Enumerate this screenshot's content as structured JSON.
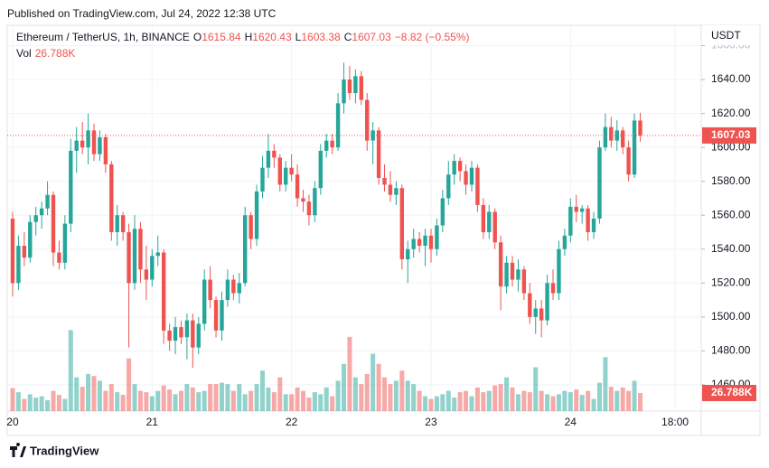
{
  "chart_data": {
    "type": "candlestick",
    "title": "Published on TradingView.com, Jul 24, 2022 12:38 UTC",
    "legend": {
      "symbol": "Ethereum / TetherUS, 1h, BINANCE",
      "ohlc_keys": [
        "O",
        "H",
        "L",
        "C"
      ],
      "change": "−8.82 (−0.55%)",
      "volume_name": "Vol"
    },
    "y_axis_label": "USDT",
    "brand": "TradingView",
    "up_color": "#26a69a",
    "down_color": "#ef5350",
    "grid": true,
    "x": [
      0,
      1,
      2,
      3,
      4,
      5,
      6,
      7,
      8,
      9,
      10,
      11,
      12,
      13,
      14,
      15,
      16,
      17,
      18,
      19,
      20,
      21,
      22,
      23,
      24,
      25,
      26,
      27,
      28,
      29,
      30,
      31,
      32,
      33,
      34,
      35,
      36,
      37,
      38,
      39,
      40,
      41,
      42,
      43,
      44,
      45,
      46,
      47,
      48,
      49,
      50,
      51,
      52,
      53,
      54,
      55,
      56,
      57,
      58,
      59,
      60,
      61,
      62,
      63,
      64,
      65,
      66,
      67,
      68,
      69,
      70,
      71,
      72,
      73,
      74,
      75,
      76,
      77,
      78,
      79,
      80,
      81,
      82,
      83,
      84,
      85,
      86,
      87,
      88,
      89,
      90,
      91,
      92,
      93,
      94,
      95,
      96,
      97,
      98,
      99,
      100,
      101,
      102,
      103,
      104,
      105,
      106,
      107,
      108
    ],
    "xlim": [
      -0.93,
      118.5
    ],
    "xticks": [
      {
        "value": 0,
        "label": "20"
      },
      {
        "value": 24,
        "label": "21"
      },
      {
        "value": 48,
        "label": "22"
      },
      {
        "value": 72,
        "label": "23"
      },
      {
        "value": 96,
        "label": "24"
      },
      {
        "value": 114,
        "label": "18:00"
      }
    ],
    "ylim": [
      1444.5,
      1672
    ],
    "yticks": [
      {
        "value": 1460,
        "label": "1460.00"
      },
      {
        "value": 1480,
        "label": "1480.00"
      },
      {
        "value": 1500,
        "label": "1500.00"
      },
      {
        "value": 1520,
        "label": "1520.00"
      },
      {
        "value": 1540,
        "label": "1540.00"
      },
      {
        "value": 1560,
        "label": "1560.00"
      },
      {
        "value": 1580,
        "label": "1580.00"
      },
      {
        "value": 1600,
        "label": "1600.00"
      },
      {
        "value": 1620,
        "label": "1620.00"
      },
      {
        "value": 1640,
        "label": "1640.00"
      },
      {
        "value": 1660,
        "label": "1660.00"
      }
    ],
    "ohlc": [
      [
        1558,
        1562,
        1512,
        1520
      ],
      [
        1520,
        1548,
        1516,
        1542
      ],
      [
        1542,
        1550,
        1530,
        1535
      ],
      [
        1535,
        1560,
        1532,
        1556
      ],
      [
        1556,
        1565,
        1548,
        1560
      ],
      [
        1560,
        1568,
        1552,
        1564
      ],
      [
        1564,
        1580,
        1560,
        1572
      ],
      [
        1572,
        1574,
        1530,
        1538
      ],
      [
        1538,
        1545,
        1528,
        1532
      ],
      [
        1532,
        1560,
        1528,
        1555
      ],
      [
        1555,
        1605,
        1550,
        1598
      ],
      [
        1598,
        1612,
        1585,
        1604
      ],
      [
        1604,
        1615,
        1596,
        1600
      ],
      [
        1600,
        1620,
        1590,
        1610
      ],
      [
        1610,
        1614,
        1592,
        1596
      ],
      [
        1596,
        1610,
        1592,
        1606
      ],
      [
        1606,
        1608,
        1585,
        1590
      ],
      [
        1590,
        1592,
        1545,
        1550
      ],
      [
        1550,
        1566,
        1542,
        1560
      ],
      [
        1560,
        1562,
        1545,
        1550
      ],
      [
        1550,
        1555,
        1482,
        1520
      ],
      [
        1520,
        1560,
        1516,
        1552
      ],
      [
        1552,
        1556,
        1520,
        1528
      ],
      [
        1528,
        1542,
        1510,
        1522
      ],
      [
        1522,
        1540,
        1518,
        1536
      ],
      [
        1536,
        1548,
        1530,
        1538
      ],
      [
        1538,
        1540,
        1484,
        1492
      ],
      [
        1492,
        1496,
        1480,
        1486
      ],
      [
        1486,
        1500,
        1478,
        1494
      ],
      [
        1494,
        1498,
        1484,
        1488
      ],
      [
        1488,
        1502,
        1475,
        1498
      ],
      [
        1498,
        1502,
        1470,
        1482
      ],
      [
        1482,
        1500,
        1478,
        1496
      ],
      [
        1496,
        1528,
        1492,
        1522
      ],
      [
        1522,
        1530,
        1505,
        1510
      ],
      [
        1510,
        1512,
        1488,
        1492
      ],
      [
        1492,
        1515,
        1486,
        1510
      ],
      [
        1510,
        1528,
        1506,
        1522
      ],
      [
        1522,
        1525,
        1510,
        1514
      ],
      [
        1514,
        1526,
        1508,
        1520
      ],
      [
        1520,
        1565,
        1518,
        1560
      ],
      [
        1560,
        1562,
        1540,
        1546
      ],
      [
        1546,
        1578,
        1542,
        1574
      ],
      [
        1574,
        1595,
        1570,
        1588
      ],
      [
        1588,
        1608,
        1582,
        1598
      ],
      [
        1598,
        1602,
        1588,
        1594
      ],
      [
        1594,
        1596,
        1574,
        1578
      ],
      [
        1578,
        1592,
        1574,
        1588
      ],
      [
        1588,
        1596,
        1580,
        1584
      ],
      [
        1584,
        1590,
        1565,
        1570
      ],
      [
        1570,
        1575,
        1562,
        1568
      ],
      [
        1568,
        1572,
        1554,
        1560
      ],
      [
        1560,
        1580,
        1556,
        1576
      ],
      [
        1576,
        1602,
        1572,
        1598
      ],
      [
        1598,
        1608,
        1594,
        1604
      ],
      [
        1604,
        1608,
        1596,
        1600
      ],
      [
        1600,
        1632,
        1598,
        1626
      ],
      [
        1626,
        1650,
        1620,
        1640
      ],
      [
        1640,
        1648,
        1628,
        1632
      ],
      [
        1632,
        1646,
        1626,
        1642
      ],
      [
        1642,
        1645,
        1625,
        1628
      ],
      [
        1628,
        1632,
        1598,
        1604
      ],
      [
        1604,
        1615,
        1590,
        1610
      ],
      [
        1610,
        1612,
        1578,
        1582
      ],
      [
        1582,
        1590,
        1574,
        1578
      ],
      [
        1578,
        1586,
        1568,
        1572
      ],
      [
        1572,
        1580,
        1566,
        1576
      ],
      [
        1576,
        1578,
        1528,
        1534
      ],
      [
        1534,
        1545,
        1520,
        1540
      ],
      [
        1540,
        1552,
        1535,
        1546
      ],
      [
        1546,
        1550,
        1538,
        1542
      ],
      [
        1542,
        1552,
        1530,
        1548
      ],
      [
        1548,
        1552,
        1532,
        1540
      ],
      [
        1540,
        1558,
        1536,
        1554
      ],
      [
        1554,
        1575,
        1550,
        1570
      ],
      [
        1570,
        1592,
        1566,
        1584
      ],
      [
        1584,
        1596,
        1578,
        1592
      ],
      [
        1592,
        1594,
        1580,
        1586
      ],
      [
        1586,
        1590,
        1572,
        1578
      ],
      [
        1578,
        1592,
        1574,
        1588
      ],
      [
        1588,
        1590,
        1562,
        1566
      ],
      [
        1566,
        1570,
        1546,
        1550
      ],
      [
        1550,
        1566,
        1546,
        1562
      ],
      [
        1562,
        1564,
        1540,
        1544
      ],
      [
        1544,
        1548,
        1504,
        1518
      ],
      [
        1518,
        1536,
        1514,
        1532
      ],
      [
        1532,
        1536,
        1518,
        1522
      ],
      [
        1522,
        1534,
        1515,
        1528
      ],
      [
        1528,
        1530,
        1510,
        1514
      ],
      [
        1514,
        1520,
        1496,
        1500
      ],
      [
        1500,
        1510,
        1490,
        1505
      ],
      [
        1505,
        1510,
        1488,
        1498
      ],
      [
        1498,
        1525,
        1495,
        1520
      ],
      [
        1520,
        1528,
        1510,
        1514
      ],
      [
        1514,
        1545,
        1510,
        1540
      ],
      [
        1540,
        1552,
        1536,
        1548
      ],
      [
        1548,
        1570,
        1544,
        1565
      ],
      [
        1565,
        1572,
        1556,
        1562
      ],
      [
        1562,
        1566,
        1555,
        1564
      ],
      [
        1564,
        1566,
        1545,
        1550
      ],
      [
        1550,
        1562,
        1546,
        1558
      ],
      [
        1558,
        1604,
        1555,
        1600
      ],
      [
        1600,
        1620,
        1598,
        1612
      ],
      [
        1612,
        1618,
        1600,
        1604
      ],
      [
        1604,
        1616,
        1598,
        1610
      ],
      [
        1610,
        1612,
        1596,
        1600
      ],
      [
        1600,
        1604,
        1580,
        1584
      ],
      [
        1584,
        1620,
        1582,
        1615.84
      ],
      [
        1615.84,
        1620.43,
        1603.38,
        1607.03
      ]
    ],
    "volume": [
      34000,
      28000,
      18000,
      25000,
      20000,
      22000,
      16000,
      30000,
      24000,
      18000,
      120000,
      50000,
      36000,
      55000,
      52000,
      45000,
      30000,
      40000,
      28000,
      24000,
      78000,
      40000,
      30000,
      28000,
      22000,
      30000,
      38000,
      32000,
      25000,
      30000,
      40000,
      35000,
      28000,
      30000,
      40000,
      40000,
      42000,
      40000,
      30000,
      40000,
      25000,
      30000,
      40000,
      60000,
      35000,
      28000,
      50000,
      25000,
      25000,
      35000,
      30000,
      20000,
      28000,
      25000,
      35000,
      22000,
      45000,
      70000,
      110000,
      50000,
      40000,
      55000,
      85000,
      70000,
      50000,
      40000,
      45000,
      60000,
      45000,
      40000,
      30000,
      22000,
      18000,
      22000,
      25000,
      30000,
      20000,
      28000,
      30000,
      22000,
      35000,
      28000,
      30000,
      38000,
      40000,
      50000,
      35000,
      25000,
      30000,
      28000,
      65000,
      30000,
      25000,
      22000,
      25000,
      30000,
      28000,
      32000,
      24000,
      30000,
      18000,
      42000,
      80000,
      36000,
      30000,
      35000,
      30000,
      45000,
      26788
    ],
    "last_volume_label": "26.788K",
    "volume_ylim": [
      0,
      572000
    ]
  }
}
